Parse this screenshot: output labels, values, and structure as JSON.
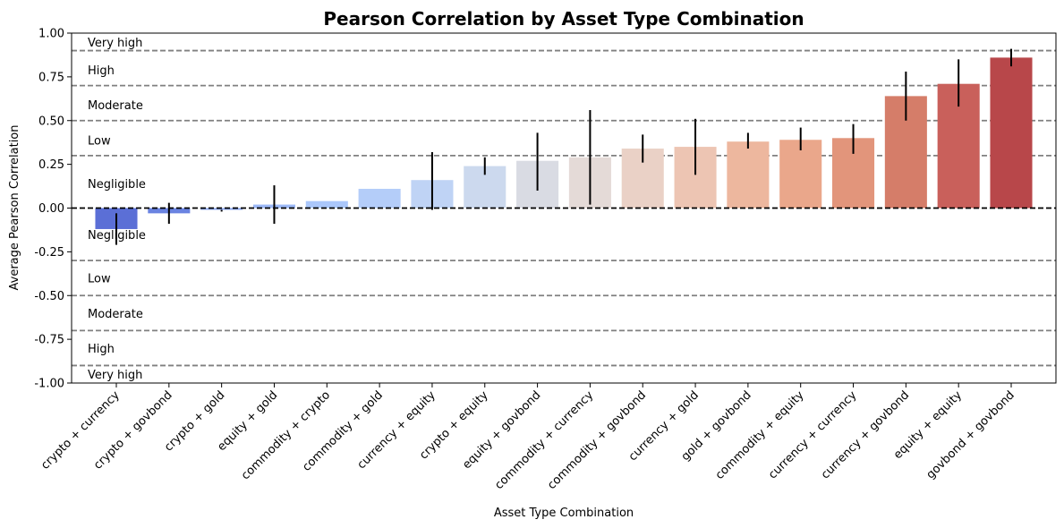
{
  "chart_data": {
    "type": "bar",
    "title": "Pearson Correlation by Asset Type Combination",
    "xlabel": "Asset Type Combination",
    "ylabel": "Average Pearson Correlation",
    "ylim": [
      -1.0,
      1.0
    ],
    "yticks": [
      "-1.00",
      "-0.75",
      "-0.50",
      "-0.25",
      "0.00",
      "0.25",
      "0.50",
      "0.75",
      "1.00"
    ],
    "categories": [
      "crypto + currency",
      "crypto + govbond",
      "crypto + gold",
      "equity + gold",
      "commodity + crypto",
      "commodity + gold",
      "currency + equity",
      "crypto + equity",
      "equity + govbond",
      "commodity + currency",
      "commodity + govbond",
      "currency + gold",
      "gold + govbond",
      "commodity + equity",
      "currency + currency",
      "currency + govbond",
      "equity + equity",
      "govbond + govbond"
    ],
    "values": [
      -0.12,
      -0.03,
      -0.01,
      0.02,
      0.04,
      0.11,
      0.16,
      0.24,
      0.27,
      0.29,
      0.34,
      0.35,
      0.38,
      0.39,
      0.4,
      0.64,
      0.71,
      0.86
    ],
    "error_low": [
      -0.21,
      -0.09,
      -0.02,
      -0.09,
      0.04,
      0.11,
      -0.01,
      0.19,
      0.1,
      0.02,
      0.26,
      0.19,
      0.34,
      0.33,
      0.31,
      0.5,
      0.58,
      0.81
    ],
    "error_high": [
      -0.03,
      0.03,
      -0.01,
      0.13,
      0.04,
      0.11,
      0.32,
      0.29,
      0.43,
      0.56,
      0.42,
      0.51,
      0.43,
      0.46,
      0.48,
      0.78,
      0.85,
      0.91
    ],
    "colors": [
      "#5b6fd6",
      "#6a83e1",
      "#8aa6f0",
      "#9db9f7",
      "#aac7fb",
      "#b4cdf9",
      "#bfd3f5",
      "#ccd9ee",
      "#d9dbe3",
      "#e4dad7",
      "#ead1c6",
      "#edc5b3",
      "#edb79e",
      "#eaa78b",
      "#e2957b",
      "#d57d69",
      "#c9605b",
      "#b8474a"
    ],
    "threshold_lines": [
      0.9,
      0.7,
      0.5,
      0.3,
      -0.3,
      -0.5,
      -0.7,
      -0.9
    ],
    "zero_line": 0.0,
    "band_labels": [
      {
        "text": "Very high",
        "y": 0.95
      },
      {
        "text": "High",
        "y": 0.79
      },
      {
        "text": "Moderate",
        "y": 0.59
      },
      {
        "text": "Low",
        "y": 0.39
      },
      {
        "text": "Negligible",
        "y": 0.14
      },
      {
        "text": "Negligible",
        "y": -0.15
      },
      {
        "text": "Low",
        "y": -0.4
      },
      {
        "text": "Moderate",
        "y": -0.6
      },
      {
        "text": "High",
        "y": -0.8
      },
      {
        "text": "Very high",
        "y": -0.95
      }
    ]
  }
}
